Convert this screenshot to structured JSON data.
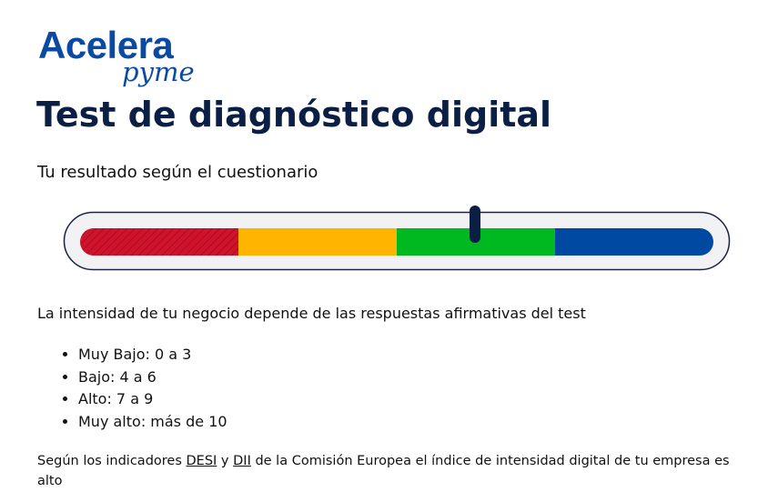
{
  "logo": {
    "main": "Acelera",
    "sub": "pyme"
  },
  "title": "Test de diagnóstico digital",
  "subtitle": "Tu resultado según el cuestionario",
  "intro": "La intensidad de tu negocio depende de las respuestas afirmativas del test",
  "levels": [
    "Muy Bajo: 0 a 3",
    "Bajo: 4 a 6",
    "Alto: 7 a 9",
    "Muy alto: más de 10"
  ],
  "footer": {
    "before": "Según los indicadores ",
    "link1": "DESI",
    "between": " y ",
    "link2": "DII",
    "after": " de la Comisión Europea el índice de intensidad digital de tu empresa es alto"
  }
}
